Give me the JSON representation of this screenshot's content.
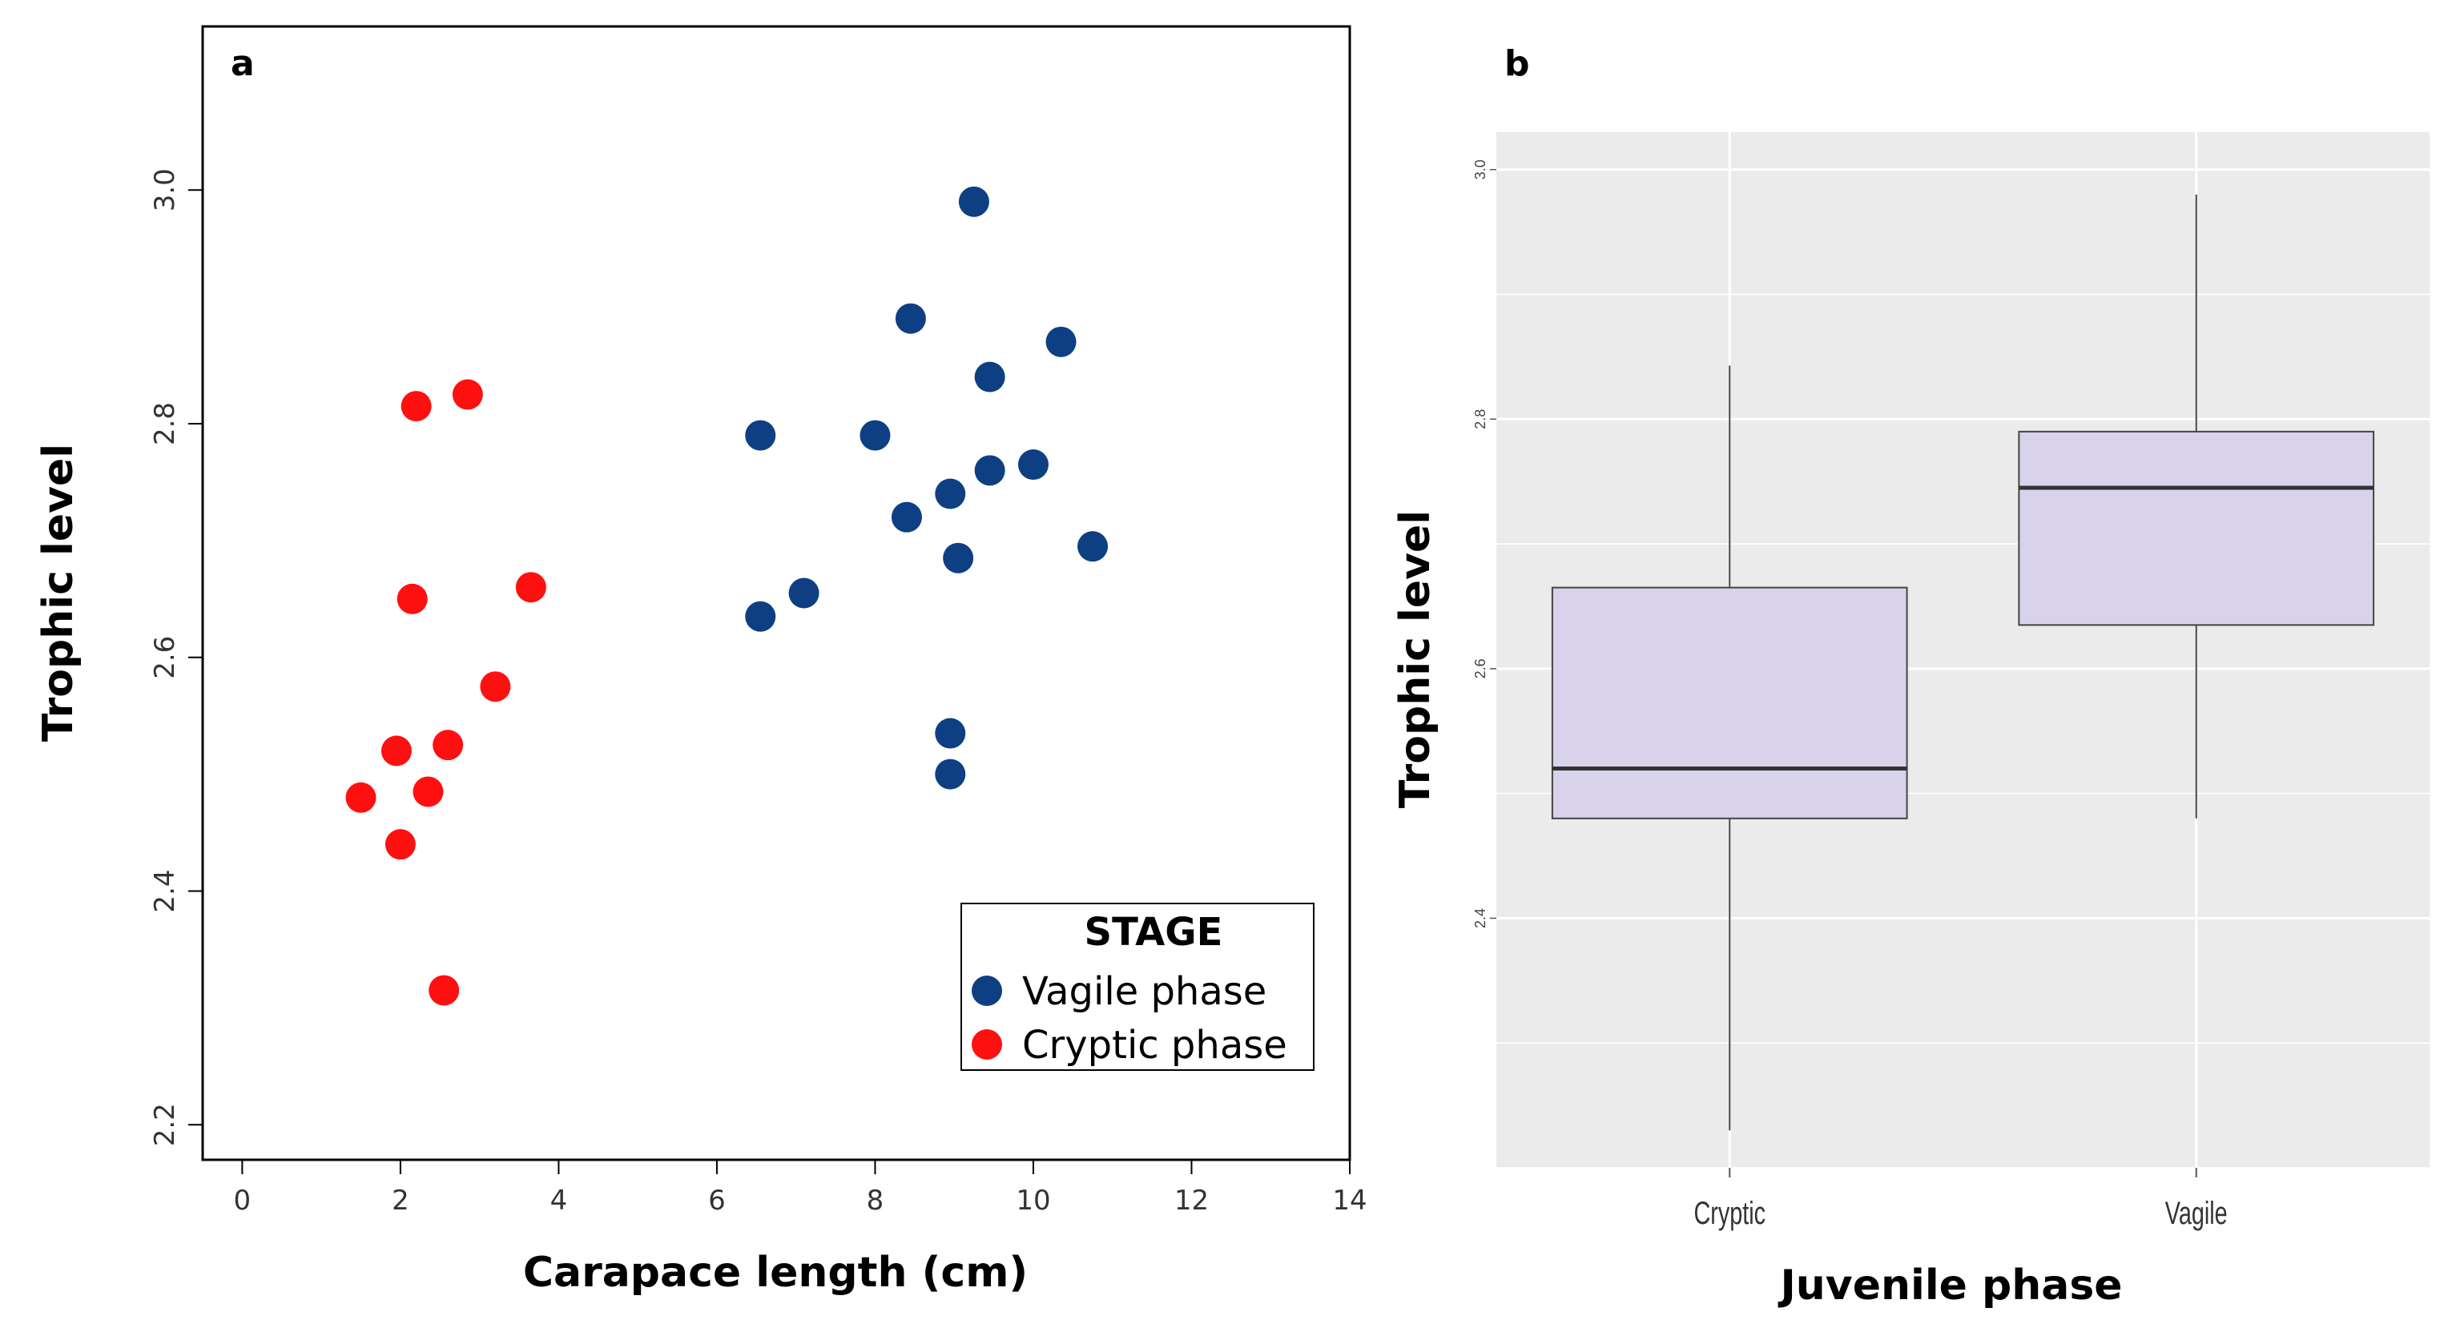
{
  "chart_data": [
    {
      "panel": "a",
      "type": "scatter",
      "xlabel": "Carapace length (cm)",
      "ylabel": "Trophic level",
      "xlim": [
        -0.5,
        14
      ],
      "ylim": [
        2.17,
        3.14
      ],
      "x_ticks": [
        0,
        2,
        4,
        6,
        8,
        10,
        12,
        14
      ],
      "y_ticks": [
        2.2,
        2.4,
        2.6,
        2.8,
        3.0
      ],
      "x_tick_labels": [
        "0",
        "2",
        "4",
        "6",
        "8",
        "10",
        "12",
        "14"
      ],
      "y_tick_labels": [
        "2.2",
        "2.4",
        "2.6",
        "2.8",
        "3.0"
      ],
      "legend": {
        "title": "STAGE",
        "position": "bottom-right"
      },
      "series": [
        {
          "name": "Vagile phase",
          "color": "#0d3f82",
          "points": [
            {
              "x": 9.25,
              "y": 2.99
            },
            {
              "x": 8.45,
              "y": 2.89
            },
            {
              "x": 10.35,
              "y": 2.87
            },
            {
              "x": 9.45,
              "y": 2.84
            },
            {
              "x": 6.55,
              "y": 2.79
            },
            {
              "x": 8.0,
              "y": 2.79
            },
            {
              "x": 10.0,
              "y": 2.765
            },
            {
              "x": 9.45,
              "y": 2.76
            },
            {
              "x": 8.95,
              "y": 2.74
            },
            {
              "x": 8.4,
              "y": 2.72
            },
            {
              "x": 10.75,
              "y": 2.695
            },
            {
              "x": 9.05,
              "y": 2.685
            },
            {
              "x": 7.1,
              "y": 2.655
            },
            {
              "x": 6.55,
              "y": 2.635
            },
            {
              "x": 8.95,
              "y": 2.535
            },
            {
              "x": 8.95,
              "y": 2.5
            }
          ]
        },
        {
          "name": "Cryptic phase",
          "color": "#ff1010",
          "points": [
            {
              "x": 2.85,
              "y": 2.825
            },
            {
              "x": 2.2,
              "y": 2.815
            },
            {
              "x": 3.65,
              "y": 2.66
            },
            {
              "x": 2.15,
              "y": 2.65
            },
            {
              "x": 3.2,
              "y": 2.575
            },
            {
              "x": 2.6,
              "y": 2.525
            },
            {
              "x": 1.95,
              "y": 2.52
            },
            {
              "x": 2.35,
              "y": 2.485
            },
            {
              "x": 1.5,
              "y": 2.48
            },
            {
              "x": 2.0,
              "y": 2.44
            },
            {
              "x": 2.55,
              "y": 2.315
            }
          ]
        }
      ]
    },
    {
      "panel": "b",
      "type": "box",
      "xlabel": "Juvenile phase",
      "ylabel": "Trophic level",
      "ylim": [
        2.2,
        3.03
      ],
      "y_ticks": [
        2.4,
        2.6,
        2.8,
        3.0
      ],
      "y_tick_labels": [
        "2.4",
        "2.6",
        "2.8",
        "3.0"
      ],
      "categories": [
        "Cryptic",
        "Vagile"
      ],
      "box_color": "#d8d3ea",
      "boxes": [
        {
          "name": "Cryptic",
          "whisker_low": 2.23,
          "q1": 2.48,
          "median": 2.52,
          "q3": 2.665,
          "whisker_high": 2.843
        },
        {
          "name": "Vagile",
          "whisker_low": 2.48,
          "q1": 2.635,
          "median": 2.745,
          "q3": 2.79,
          "whisker_high": 2.98
        }
      ]
    }
  ]
}
